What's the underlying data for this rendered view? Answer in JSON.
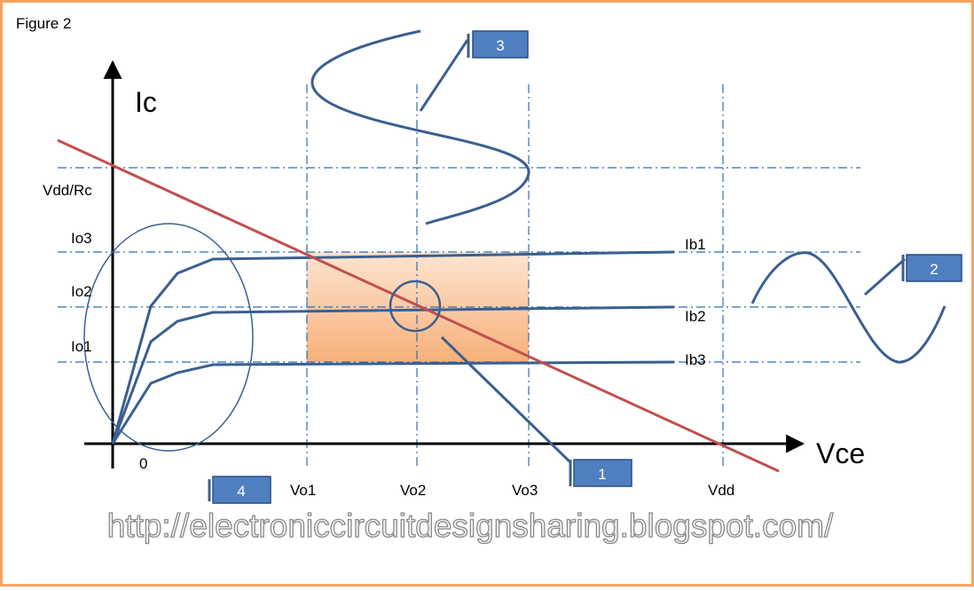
{
  "figure_label": "Figure 2",
  "axes": {
    "y_label": "Ic",
    "x_label": "Vce",
    "origin": "0"
  },
  "y_levels": [
    "Vdd/Rc",
    "Io3",
    "Io2",
    "Io1"
  ],
  "x_levels": [
    "Vo1",
    "Vo2",
    "Vo3",
    "Vdd"
  ],
  "curves": [
    "Ib1",
    "Ib2",
    "Ib3"
  ],
  "callouts": [
    "1",
    "2",
    "3",
    "4"
  ],
  "url": "http://electroniccircuitdesignsharing.blogspot.com/"
}
